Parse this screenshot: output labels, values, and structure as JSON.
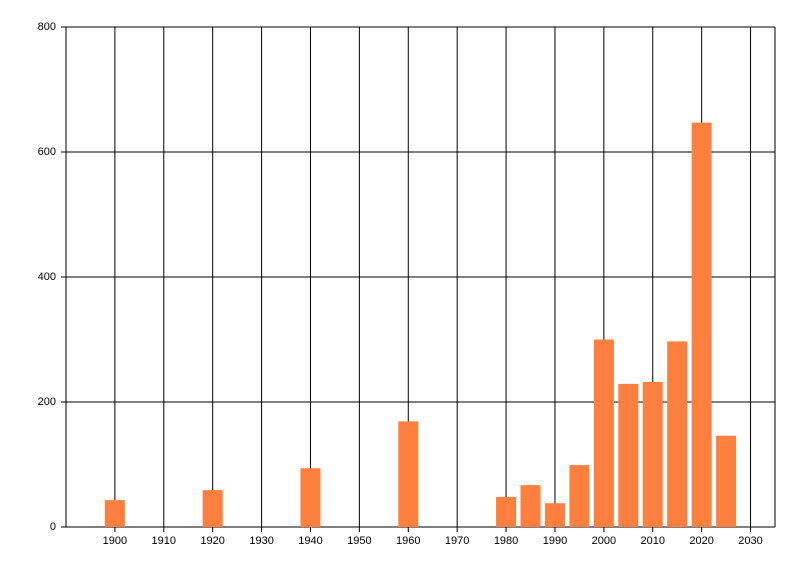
{
  "chart_data": {
    "type": "bar",
    "color": "#ff7f3f",
    "x": [
      1900,
      1920,
      1940,
      1960,
      1980,
      1985,
      1990,
      1995,
      2000,
      2005,
      2010,
      2015,
      2020,
      2025
    ],
    "values": [
      43,
      59,
      94,
      169,
      48,
      67,
      38,
      99,
      300,
      229,
      232,
      297,
      647,
      146
    ],
    "xlim": [
      1890,
      2035
    ],
    "xticks": [
      1900,
      1910,
      1920,
      1930,
      1940,
      1950,
      1960,
      1970,
      1980,
      1990,
      2000,
      2010,
      2020,
      2030
    ],
    "ylim": [
      0,
      800
    ],
    "yticks": [
      0,
      200,
      400,
      600,
      800
    ],
    "grid": true
  }
}
